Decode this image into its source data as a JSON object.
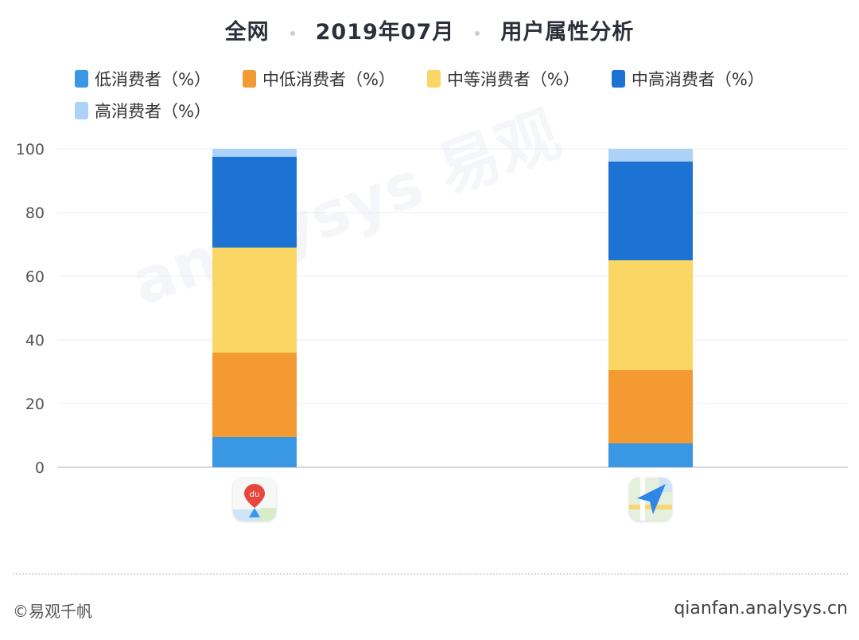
{
  "title": {
    "part1": "全网",
    "part2": "2019年07月",
    "part3": "用户属性分析"
  },
  "colors": {
    "low": "#3a97e3",
    "mid_low": "#f39a32",
    "mid": "#fad665",
    "mid_high": "#1c73d4",
    "high": "#acd3f7",
    "grid": "#e9ecf1",
    "axis": "#c9ccd3"
  },
  "chart_data": {
    "type": "bar",
    "stacked": true,
    "categories": [
      "百度地图",
      "高德地图"
    ],
    "ylim": [
      0,
      100
    ],
    "yticks": [
      0,
      20,
      40,
      60,
      80,
      100
    ],
    "series": [
      {
        "name": "低消费者（%）",
        "color_key": "low",
        "values": [
          9.5,
          7.5
        ]
      },
      {
        "name": "中低消费者（%）",
        "color_key": "mid_low",
        "values": [
          26.5,
          23.0
        ]
      },
      {
        "name": "中等消费者（%）",
        "color_key": "mid",
        "values": [
          33.0,
          34.5
        ]
      },
      {
        "name": "中高消费者（%）",
        "color_key": "mid_high",
        "values": [
          28.5,
          31.0
        ]
      },
      {
        "name": "高消费者（%）",
        "color_key": "high",
        "values": [
          2.5,
          4.0
        ]
      }
    ],
    "legend_position": "top",
    "grid": true
  },
  "apps": [
    {
      "icon": "baidu-map-icon",
      "badge": "du"
    },
    {
      "icon": "amap-icon"
    }
  ],
  "watermark": "analysys 易观",
  "footer": {
    "copyright": "©易观千帆",
    "url": "qianfan.analysys.cn"
  }
}
